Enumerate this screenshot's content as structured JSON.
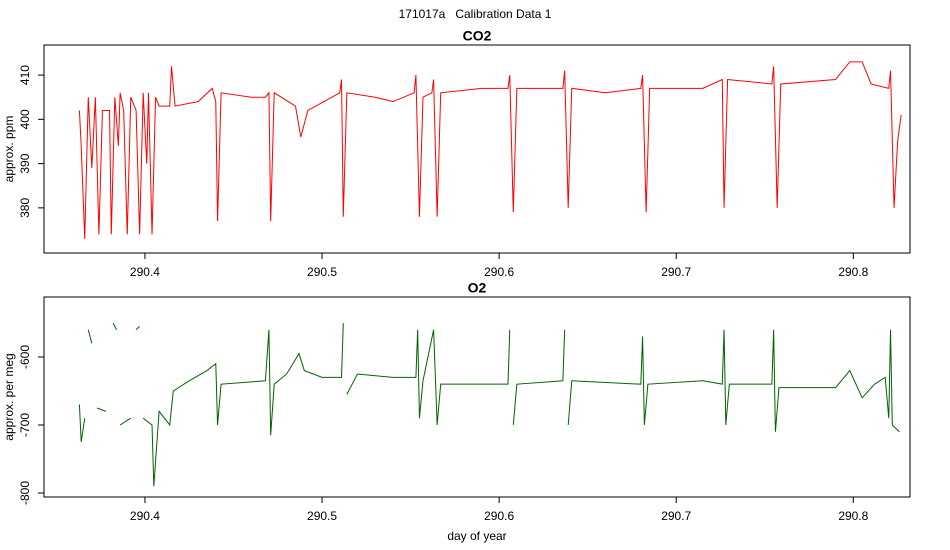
{
  "title": "171017a   Calibration Data 1",
  "chart_data": [
    {
      "type": "line",
      "title": "CO2",
      "y_label": "approx. ppm",
      "xlim": [
        290.343,
        290.832
      ],
      "xticks": [
        290.4,
        290.5,
        290.6,
        290.7,
        290.8
      ],
      "ylim": [
        369.8,
        416.8
      ],
      "yticks": [
        380,
        390,
        400,
        410
      ],
      "series": [
        {
          "color": "#ff0000",
          "x": [
            290.363,
            290.364,
            290.366,
            290.368,
            290.37,
            290.372,
            290.374,
            290.376,
            290.38,
            290.381,
            290.383,
            290.385,
            290.386,
            290.388,
            290.39,
            290.392,
            290.395,
            290.397,
            290.399,
            290.401,
            290.402,
            290.404,
            290.406,
            290.408,
            290.414,
            290.415,
            290.417,
            290.43,
            290.438,
            290.44,
            290.441,
            290.443,
            290.46,
            290.468,
            290.47,
            290.471,
            290.473,
            290.485,
            290.488,
            290.492,
            290.51,
            290.511,
            290.512,
            290.514,
            290.53,
            290.54,
            290.552,
            290.553,
            290.555,
            290.557,
            290.562,
            290.563,
            290.565,
            290.567,
            290.59,
            290.605,
            290.606,
            290.608,
            290.61,
            290.636,
            290.637,
            290.639,
            290.641,
            290.66,
            290.68,
            290.681,
            290.683,
            290.685,
            290.715,
            290.726,
            290.727,
            290.729,
            290.754,
            290.755,
            290.757,
            290.759,
            290.79,
            290.798,
            290.805,
            290.81,
            290.82,
            290.821,
            290.823,
            290.825,
            290.827
          ],
          "values": [
            402,
            394,
            373,
            405,
            389,
            405,
            374,
            402,
            402,
            374,
            405,
            394,
            406,
            402,
            374,
            405,
            402,
            374,
            406,
            390,
            406,
            374,
            405,
            403,
            403,
            412,
            403,
            404,
            407,
            404,
            377,
            406,
            405,
            405,
            406,
            377,
            406,
            403,
            396,
            402,
            406,
            409,
            378,
            406,
            405,
            404,
            406,
            410,
            378,
            405,
            406,
            409,
            378,
            406,
            407,
            407,
            410,
            379,
            407,
            407,
            411,
            380,
            407,
            406,
            407,
            410,
            379,
            407,
            407,
            409,
            380,
            409,
            408,
            412,
            380,
            408,
            409,
            413,
            413,
            408,
            407,
            411,
            380,
            395,
            401
          ]
        }
      ]
    },
    {
      "type": "line",
      "title": "O2",
      "y_label": "approx. per meg",
      "x_label": "day of year",
      "xlim": [
        290.343,
        290.832
      ],
      "xticks": [
        290.4,
        290.5,
        290.6,
        290.7,
        290.8
      ],
      "ylim": [
        -805.9,
        -511.8
      ],
      "yticks": [
        -800,
        -700,
        -600
      ],
      "series": [
        {
          "color": "#006400",
          "x": [
            290.363,
            290.364,
            290.366,
            290.367,
            290.368,
            290.37,
            290.371,
            290.373,
            290.378,
            290.381,
            290.382,
            290.384,
            290.385,
            290.386,
            290.392,
            290.394,
            290.395,
            290.397,
            290.398,
            290.399,
            290.404,
            290.405,
            290.408,
            290.414,
            290.416,
            290.425,
            290.435,
            290.44,
            290.441,
            290.443,
            290.468,
            290.47,
            290.471,
            290.473,
            290.48,
            290.487,
            290.49,
            290.5,
            290.511,
            290.512,
            290.513,
            290.514,
            290.52,
            290.54,
            290.553,
            290.554,
            290.555,
            290.557,
            290.563,
            290.565,
            290.567,
            290.59,
            290.605,
            290.606,
            290.607,
            290.608,
            290.61,
            290.636,
            290.637,
            290.638,
            290.639,
            290.641,
            290.68,
            290.681,
            290.682,
            290.684,
            290.715,
            290.726,
            290.727,
            290.728,
            290.73,
            290.754,
            290.755,
            290.756,
            290.758,
            290.79,
            290.798,
            290.805,
            290.812,
            290.818,
            290.82,
            290.821,
            290.822,
            290.826
          ],
          "values": [
            -670,
            -725,
            -690,
            null,
            -560,
            -580,
            null,
            -675,
            -680,
            null,
            -550,
            -560,
            null,
            -700,
            -690,
            null,
            -560,
            -555,
            null,
            -690,
            -700,
            -790,
            -680,
            -700,
            -650,
            -635,
            -620,
            -610,
            -700,
            -640,
            -635,
            -560,
            -715,
            -640,
            -625,
            -595,
            -620,
            -630,
            -630,
            -550,
            null,
            -655,
            -625,
            -630,
            -630,
            -560,
            -690,
            -635,
            -560,
            -700,
            -640,
            -640,
            -640,
            -560,
            null,
            -700,
            -640,
            -635,
            -560,
            null,
            -700,
            -635,
            -640,
            -570,
            -700,
            -640,
            -635,
            -640,
            -560,
            -700,
            -640,
            -640,
            -560,
            -710,
            -645,
            -645,
            -620,
            -660,
            -640,
            -630,
            -690,
            -560,
            -700,
            -710
          ]
        }
      ]
    }
  ]
}
